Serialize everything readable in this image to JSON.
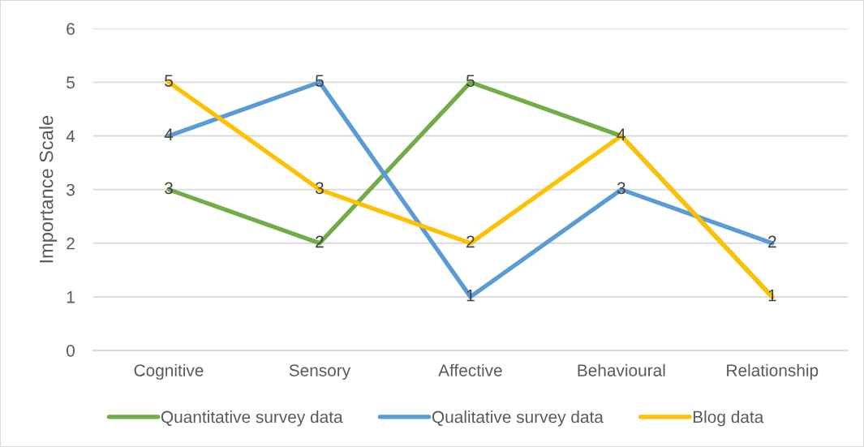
{
  "chart_data": {
    "type": "line",
    "ylabel": "Importance Scale",
    "categories": [
      "Cognitive",
      "Sensory",
      "Affective",
      "Behavioural",
      "Relationship"
    ],
    "series": [
      {
        "name": "Quantitative survey data",
        "color": "#70ad47",
        "values": [
          3,
          2,
          5,
          4,
          1
        ],
        "value_labels": [
          "3",
          "2",
          "5",
          "4",
          "1"
        ]
      },
      {
        "name": "Qualitative survey data",
        "color": "#5b9bd5",
        "values": [
          4,
          5,
          1,
          3,
          2
        ],
        "value_labels": [
          "4",
          "5",
          "1",
          "3",
          "2"
        ]
      },
      {
        "name": "Blog data",
        "color": "#ffc000",
        "values": [
          5,
          3,
          2,
          4,
          1
        ],
        "value_labels": [
          "5",
          "3",
          "2",
          null,
          null
        ]
      }
    ],
    "ylim": [
      0,
      6
    ],
    "yticks": [
      0,
      1,
      2,
      3,
      4,
      5,
      6
    ],
    "grid": "y",
    "legend": "bottom"
  }
}
